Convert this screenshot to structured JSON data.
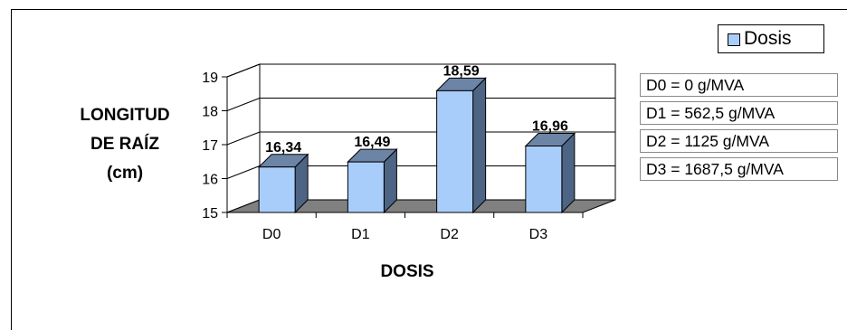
{
  "chart_data": {
    "type": "bar",
    "categories": [
      "D0",
      "D1",
      "D2",
      "D3"
    ],
    "values": [
      16.34,
      16.49,
      18.59,
      16.96
    ],
    "value_labels": [
      "16,34",
      "16,49",
      "18,59",
      "16,96"
    ],
    "xlabel": "DOSIS",
    "ylabel_lines": [
      "LONGITUD",
      "DE RAÍZ",
      "(cm)"
    ],
    "ylim": [
      15,
      19
    ],
    "yticks": [
      15,
      16,
      17,
      18,
      19
    ],
    "series": [
      {
        "name": "Dosis",
        "values": [
          16.34,
          16.49,
          18.59,
          16.96
        ]
      }
    ],
    "legend": {
      "label": "Dosis",
      "position": "top-right"
    },
    "grid": true,
    "style": "3d",
    "colors": {
      "bar_front": "#a9cdfb",
      "bar_side": "#4d6484",
      "bar_top": "#6c84a6",
      "floor": "#808080"
    }
  },
  "notes": [
    "D0 = 0 g/MVA",
    "D1 = 562,5 g/MVA",
    "D2 = 1125 g/MVA",
    "D3 = 1687,5 g/MVA"
  ]
}
